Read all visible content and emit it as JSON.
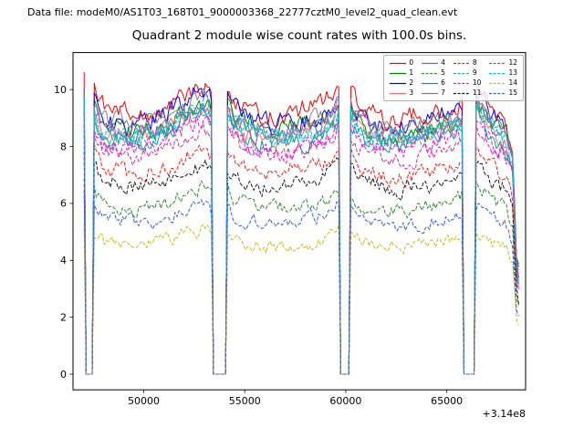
{
  "header": {
    "datafile": "Data file: modeM0/AS1T03_168T01_9000003368_22777cztM0_level2_quad_clean.evt"
  },
  "chart_data": {
    "type": "line",
    "title": "Quadrant 2 module wise count rates with 100.0s bins.",
    "xlabel": "",
    "ylabel": "",
    "x_offset_text": "+3.14e8",
    "xlim": [
      46500,
      68900
    ],
    "ylim": [
      -0.55,
      11.3
    ],
    "xticks": [
      50000,
      55000,
      60000,
      65000
    ],
    "yticks": [
      0,
      2,
      4,
      6,
      8,
      10
    ],
    "grid": false,
    "legend_position": "upper right",
    "legend_columns": 4,
    "bin_seconds": 100,
    "x_start": 47050,
    "x_end": 68600,
    "gaps": [
      [
        47150,
        47500
      ],
      [
        53400,
        54050
      ],
      [
        59750,
        60200
      ],
      [
        65850,
        66350
      ]
    ],
    "trend": [
      [
        47050,
        1.13
      ],
      [
        47140,
        1.1
      ],
      [
        47520,
        1.08
      ],
      [
        48000,
        1.0
      ],
      [
        49500,
        0.97
      ],
      [
        51000,
        1.0
      ],
      [
        52300,
        1.07
      ],
      [
        53050,
        1.09
      ],
      [
        53390,
        1.05
      ],
      [
        54060,
        1.09
      ],
      [
        54450,
        1.03
      ],
      [
        55300,
        0.985
      ],
      [
        56500,
        0.965
      ],
      [
        57600,
        0.985
      ],
      [
        58800,
        1.005
      ],
      [
        59400,
        1.05
      ],
      [
        59740,
        1.1
      ],
      [
        60210,
        1.07
      ],
      [
        60800,
        1.0
      ],
      [
        61800,
        0.965
      ],
      [
        62800,
        0.96
      ],
      [
        63800,
        0.985
      ],
      [
        64800,
        1.005
      ],
      [
        65500,
        1.02
      ],
      [
        65840,
        1.04
      ],
      [
        66360,
        1.1
      ],
      [
        66800,
        1.065
      ],
      [
        67300,
        1.0
      ],
      [
        67900,
        0.965
      ],
      [
        68250,
        0.86
      ],
      [
        68450,
        0.45
      ],
      [
        68600,
        0.36
      ]
    ],
    "noise": {
      "base": 0.1,
      "per_level": 0.022,
      "smooth": 0.45,
      "wobble": 0.012
    },
    "series": [
      {
        "label": "0",
        "color": "#ff0000",
        "dash": false,
        "level": 9.35
      },
      {
        "label": "1",
        "color": "#008000",
        "dash": false,
        "level": 8.75
      },
      {
        "label": "2",
        "color": "#0000ff",
        "dash": false,
        "level": 9.05
      },
      {
        "label": "3",
        "color": "#f07070",
        "dash": false,
        "level": 8.5
      },
      {
        "label": "4",
        "color": "#8a5fc8",
        "dash": false,
        "level": 8.65
      },
      {
        "label": "5",
        "color": "#2e8b2e",
        "dash": true,
        "level": 6.0
      },
      {
        "label": "6",
        "color": "#00a2a2",
        "dash": false,
        "level": 8.35
      },
      {
        "label": "7",
        "color": "#808080",
        "dash": false,
        "level": 8.9
      },
      {
        "label": "8",
        "color": "#ff1a1a",
        "dash": true,
        "level": 7.25
      },
      {
        "label": "9",
        "color": "#20b2aa",
        "dash": true,
        "level": 8.5
      },
      {
        "label": "10",
        "color": "#ff00ff",
        "dash": true,
        "level": 8.1
      },
      {
        "label": "11",
        "color": "#1a1a1a",
        "dash": true,
        "level": 6.75
      },
      {
        "label": "12",
        "color": "#cc2fa0",
        "dash": true,
        "level": 7.9
      },
      {
        "label": "13",
        "color": "#00bfdf",
        "dash": true,
        "level": 8.6
      },
      {
        "label": "14",
        "color": "#c9bb22",
        "dash": true,
        "level": 4.65
      },
      {
        "label": "15",
        "color": "#3a5fdf",
        "dash": true,
        "level": 5.45
      }
    ]
  }
}
